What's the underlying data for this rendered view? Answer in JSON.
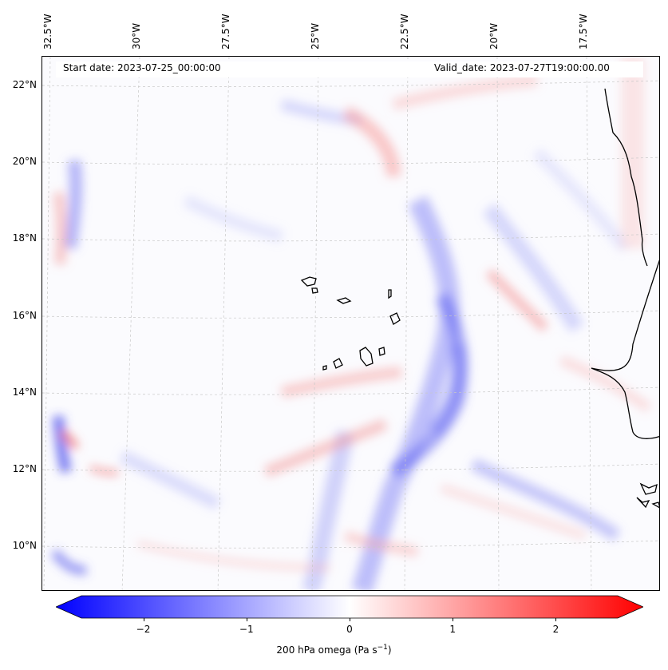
{
  "map": {
    "start_date": "Start date: 2023-07-25_00:00:00",
    "valid_date": "Valid_date: 2023-07-27T19:00:00.00",
    "lon_labels": [
      "32.5°W",
      "30°W",
      "27.5°W",
      "25°W",
      "22.5°W",
      "20°W",
      "17.5°W"
    ],
    "lat_labels": [
      "22°N",
      "20°N",
      "18°N",
      "16°N",
      "14°N",
      "12°N",
      "10°N"
    ],
    "variable": "200 hPa omega (Pa s",
    "unit_superscript": "−1",
    "unit_close": ")"
  },
  "colorbar": {
    "min": -2.6,
    "max": 2.6,
    "ticks": [
      "−2",
      "−1",
      "0",
      "1",
      "2"
    ],
    "tick_values": [
      -2,
      -1,
      0,
      1,
      2
    ],
    "colors": {
      "low": "#0000ff",
      "mid": "#ffffff",
      "high": "#ff0000"
    }
  },
  "colors": {
    "coastline": "#000000",
    "gridline": "#c8c8c8",
    "background": "#fbfbfe"
  }
}
